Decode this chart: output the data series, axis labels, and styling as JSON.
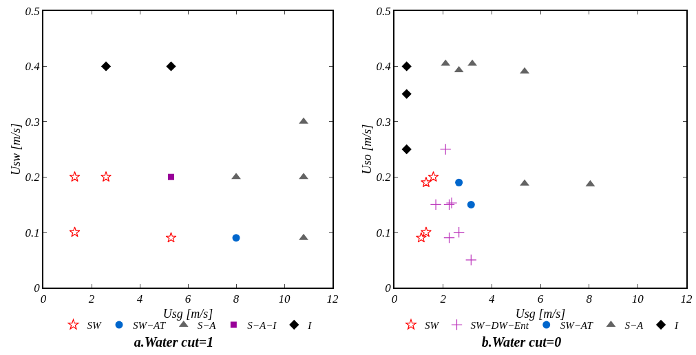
{
  "chart_data": [
    {
      "type": "scatter",
      "title": "a.Water cut=1",
      "xlabel": "Usg [m/s]",
      "ylabel": "Usw [m/s]",
      "xlim": [
        0,
        12
      ],
      "xticks": [
        0,
        2,
        4,
        6,
        8,
        10,
        12
      ],
      "ylim": [
        0,
        0.5
      ],
      "yticks": [
        0,
        0.1,
        0.2,
        0.3,
        0.4,
        0.5
      ],
      "grid": false,
      "legend": "bottom",
      "series": [
        {
          "name": "SW",
          "color": "#ff0000",
          "marker": "star",
          "x": [
            1.3,
            2.6,
            1.3,
            5.3
          ],
          "values": [
            0.2,
            0.2,
            0.1,
            0.09
          ]
        },
        {
          "name": "SW−AT",
          "color": "#0066cc",
          "marker": "circle",
          "x": [
            8
          ],
          "values": [
            0.09
          ]
        },
        {
          "name": "S−A",
          "color": "#636363",
          "marker": "triangle",
          "x": [
            8,
            10.8,
            10.8,
            10.8
          ],
          "values": [
            0.2,
            0.3,
            0.2,
            0.09
          ]
        },
        {
          "name": "S−A−I",
          "color": "#990099",
          "marker": "square",
          "x": [
            5.3
          ],
          "values": [
            0.2
          ]
        },
        {
          "name": "I",
          "color": "#000000",
          "marker": "diamond",
          "x": [
            2.6,
            5.3
          ],
          "values": [
            0.4,
            0.4
          ]
        }
      ]
    },
    {
      "type": "scatter",
      "title": "b.Water cut=0",
      "xlabel": "Usg [m/s]",
      "ylabel": "Uso [m/s]",
      "xlim": [
        0,
        12
      ],
      "xticks": [
        0,
        2,
        4,
        6,
        8,
        10,
        12
      ],
      "ylim": [
        0,
        0.5
      ],
      "yticks": [
        0,
        0.1,
        0.2,
        0.3,
        0.4,
        0.5
      ],
      "grid": false,
      "legend": "bottom",
      "series": [
        {
          "name": "SW",
          "color": "#ff0000",
          "marker": "star",
          "x": [
            1.1,
            1.3,
            1.3,
            1.6
          ],
          "values": [
            0.09,
            0.1,
            0.19,
            0.2
          ]
        },
        {
          "name": "SW−DW−Ent",
          "color": "#bb33bb",
          "marker": "cross",
          "x": [
            2.1,
            1.7,
            2.25,
            2.35,
            2.25,
            2.65,
            3.15
          ],
          "values": [
            0.25,
            0.15,
            0.15,
            0.153,
            0.09,
            0.1,
            0.05
          ]
        },
        {
          "name": "SW−AT",
          "color": "#0066cc",
          "marker": "circle",
          "x": [
            2.65,
            3.15
          ],
          "values": [
            0.19,
            0.15
          ]
        },
        {
          "name": "S−A",
          "color": "#636363",
          "marker": "triangle",
          "x": [
            2.1,
            2.65,
            3.2,
            5.35,
            5.35,
            8.05
          ],
          "values": [
            0.405,
            0.393,
            0.405,
            0.391,
            0.188,
            0.187
          ]
        },
        {
          "name": "I",
          "color": "#000000",
          "marker": "diamond",
          "x": [
            0.5,
            0.5,
            0.5
          ],
          "values": [
            0.4,
            0.35,
            0.25
          ]
        }
      ]
    }
  ]
}
